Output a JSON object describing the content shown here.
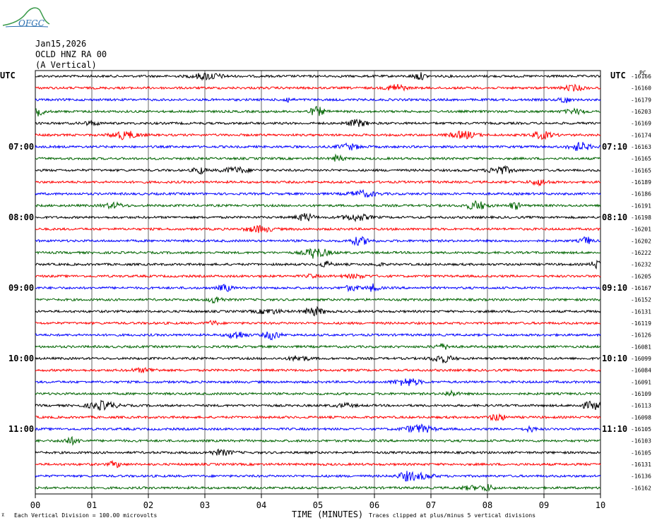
{
  "logo": {
    "text": "OFGC",
    "color": "#2a6fb0",
    "hill_color": "#3a9a4a"
  },
  "header": {
    "date": "Jan15,2026",
    "station": "OCLD HNZ RA 00",
    "component": "(A Vertical)"
  },
  "left_tz": "UTC",
  "right_tz": "UTC",
  "right_top_label": "PC",
  "footer": {
    "scale_note": "Each Vertical Division =  100.00 microvolts",
    "xlabel": "TIME (MINUTES)",
    "clip_note": "Traces clipped at plus/minus 5 vertical divisions"
  },
  "chart_data": {
    "type": "line",
    "title": "",
    "xlabel": "TIME (MINUTES)",
    "xlim": [
      0,
      10
    ],
    "x_ticks": [
      "00",
      "01",
      "02",
      "03",
      "04",
      "05",
      "06",
      "07",
      "08",
      "09",
      "10"
    ],
    "left_hour_labels": [
      {
        "row": 6,
        "label": "07:00"
      },
      {
        "row": 12,
        "label": "08:00"
      },
      {
        "row": 18,
        "label": "09:00"
      },
      {
        "row": 24,
        "label": "10:00"
      },
      {
        "row": 30,
        "label": "11:00"
      }
    ],
    "right_hour_labels": [
      {
        "row": 6,
        "label": "07:10"
      },
      {
        "row": 12,
        "label": "08:10"
      },
      {
        "row": 18,
        "label": "09:10"
      },
      {
        "row": 24,
        "label": "10:10"
      },
      {
        "row": 30,
        "label": "11:10"
      }
    ],
    "trace_colors": [
      "#000000",
      "#ff0000",
      "#0000ff",
      "#006400"
    ],
    "trace_offsets": [
      -16166,
      -16160,
      -16179,
      -16203,
      -16169,
      -16174,
      -16163,
      -16165,
      -16165,
      -16189,
      -16186,
      -16191,
      -16198,
      -16201,
      -16202,
      -16222,
      -16232,
      -16205,
      -16167,
      -16152,
      -16131,
      -16119,
      -16126,
      -16081,
      -16099,
      -16084,
      -16091,
      -16109,
      -16113,
      -16098,
      -16105,
      -16103,
      -16105,
      -16131,
      -16136,
      -16162
    ],
    "grid": true,
    "vertical_gridlines_minutes": [
      1,
      2,
      3,
      4,
      5,
      6,
      7,
      8,
      9
    ]
  }
}
